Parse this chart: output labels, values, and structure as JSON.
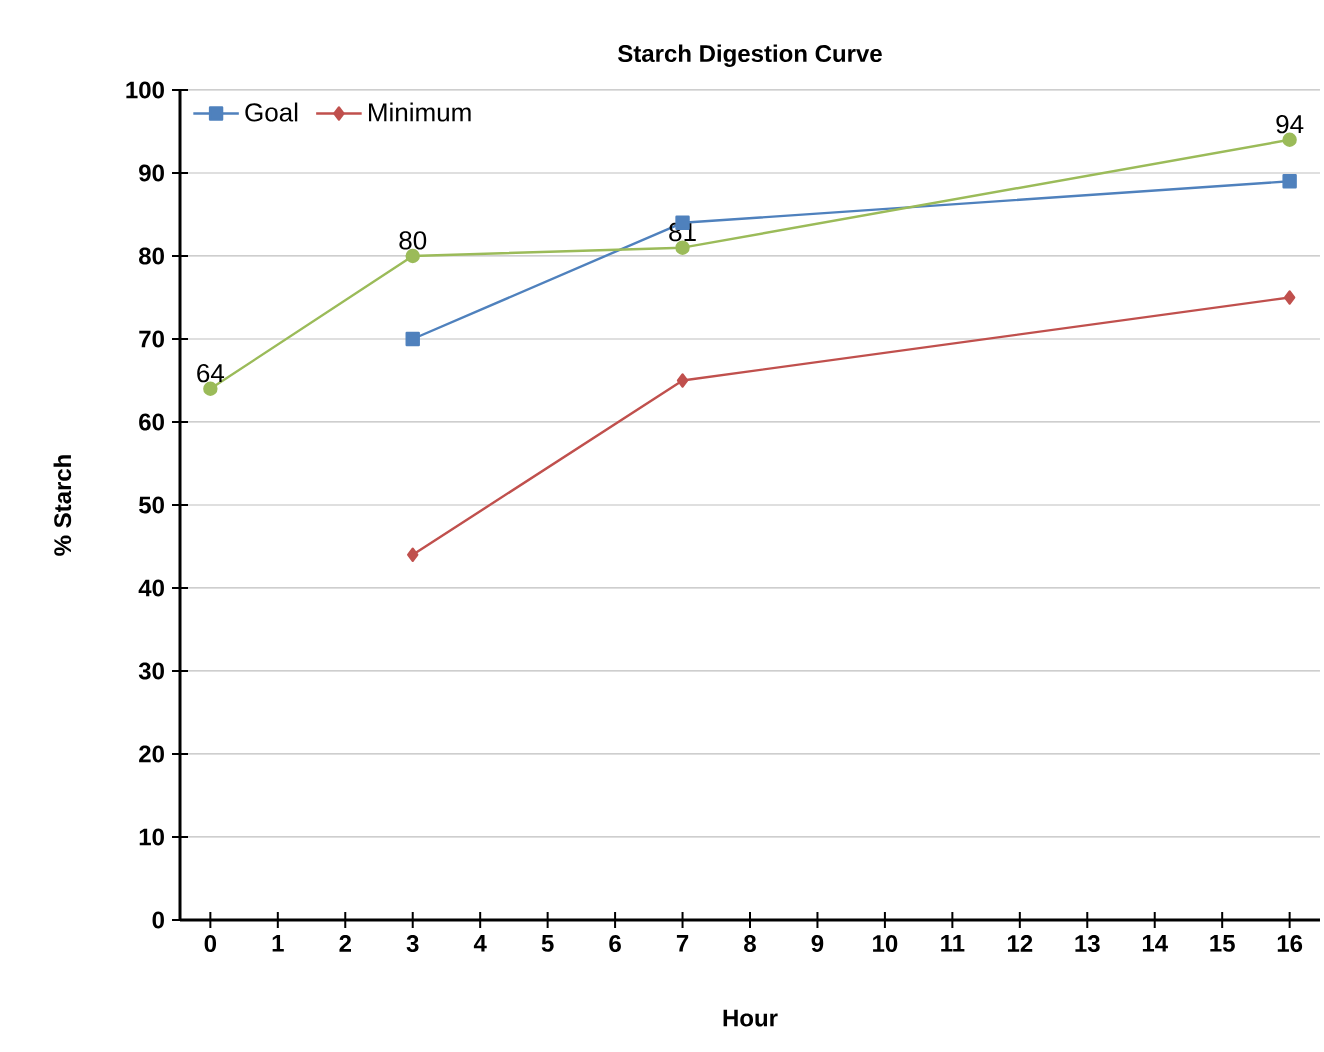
{
  "chart_data": {
    "type": "line",
    "title": "Starch Digestion Curve",
    "xlabel": "Hour",
    "ylabel": "% Starch",
    "xlim": [
      -0.45,
      16.45
    ],
    "ylim": [
      0,
      100
    ],
    "xticks": [
      0,
      1,
      2,
      3,
      4,
      5,
      6,
      7,
      8,
      9,
      10,
      11,
      12,
      13,
      14,
      15,
      16
    ],
    "yticks": [
      0,
      10,
      20,
      30,
      40,
      50,
      60,
      70,
      80,
      90,
      100
    ],
    "grid": "y",
    "legend": "top left",
    "series": [
      {
        "name": "Goal",
        "color": "#4f81bd",
        "marker": "square",
        "x": [
          3,
          7,
          16
        ],
        "values": [
          70,
          84,
          89
        ]
      },
      {
        "name": "Minimum",
        "color": "#c0504d",
        "marker": "diamond",
        "x": [
          3,
          7,
          16
        ],
        "values": [
          44,
          65,
          75
        ]
      },
      {
        "color": "#9bbb59",
        "marker": "circle",
        "x": [
          0,
          3,
          7,
          16
        ],
        "values": [
          64,
          80,
          81,
          94
        ],
        "value_labels": [
          "64",
          "80",
          "81",
          "94"
        ]
      }
    ]
  }
}
